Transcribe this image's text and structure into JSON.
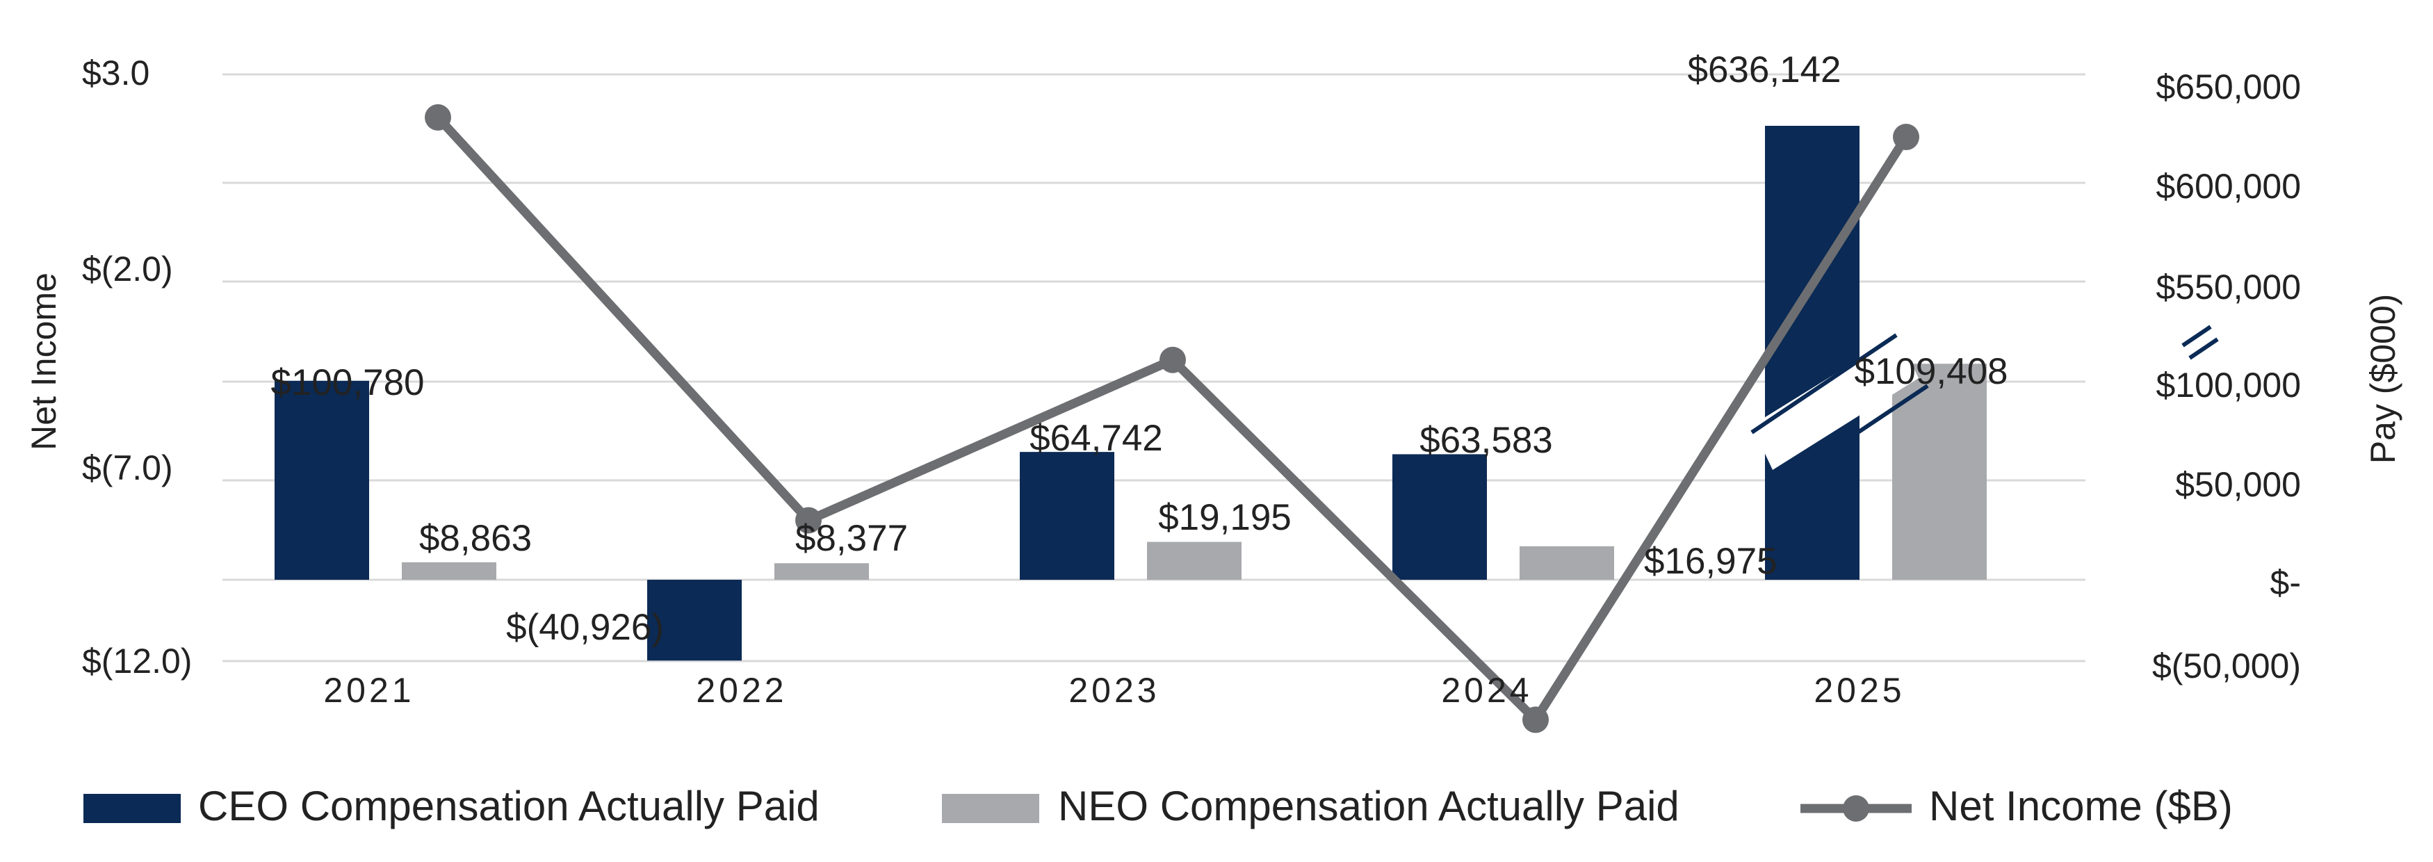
{
  "chart_data": {
    "type": "bar",
    "categories": [
      "2021",
      "2022",
      "2023",
      "2024",
      "2025"
    ],
    "series": [
      {
        "name": "CEO Compensation Actually Paid",
        "kind": "bar",
        "axis": "right",
        "values": [
          100780,
          -40926,
          64742,
          63583,
          636142
        ],
        "labels": [
          "$100,780",
          "$(40,926)",
          "$64,742",
          "$63,583",
          "$636,142"
        ],
        "color": "#0b2a55"
      },
      {
        "name": "NEO Compensation Actually Paid",
        "kind": "bar",
        "axis": "right",
        "values": [
          8863,
          8377,
          19195,
          16975,
          109408
        ],
        "labels": [
          "$8,863",
          "$8,377",
          "$19,195",
          "$16,975",
          "$109,408"
        ],
        "color": "#a7a9ac"
      },
      {
        "name": "Net Income ($B)",
        "kind": "line",
        "axis": "left",
        "values": [
          1.9,
          -8.4,
          -4.3,
          -13.5,
          1.4
        ],
        "color": "#6d6e71"
      }
    ],
    "left_axis": {
      "label": "Net Income",
      "ticks": [
        "$3.0",
        "$(2.0)",
        "$(7.0)",
        "$(12.0)"
      ],
      "tick_values": [
        3.0,
        -2.0,
        -7.0,
        -12.0
      ]
    },
    "right_axis": {
      "label": "Pay ($000)",
      "ticks": [
        "$650,000",
        "$600,000",
        "$550,000",
        "$100,000",
        "$50,000",
        "$-",
        "$(50,000)"
      ],
      "tick_values": [
        650000,
        600000,
        550000,
        100000,
        50000,
        0,
        -50000
      ],
      "axis_break": "between 100,000 and 550,000"
    },
    "grid": true,
    "legend_position": "bottom"
  }
}
